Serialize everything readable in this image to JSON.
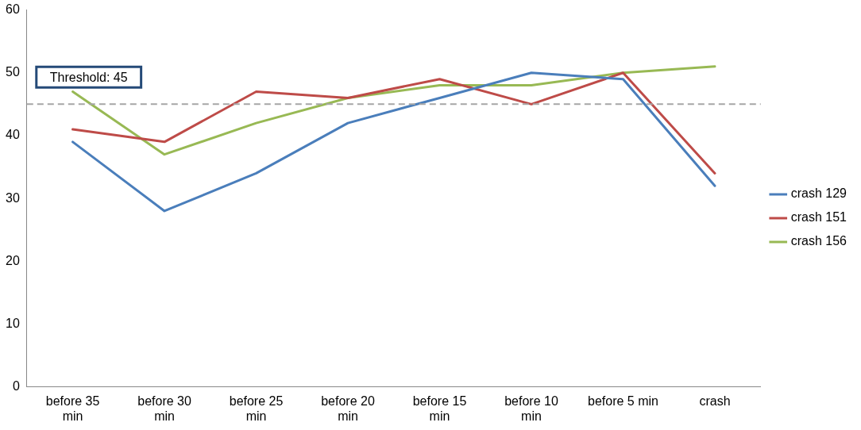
{
  "chart_data": {
    "type": "line",
    "categories": [
      "before 35 min",
      "before 30 min",
      "before 25 min",
      "before 20 min",
      "before 15 min",
      "before 10 min",
      "before 5 min",
      "crash"
    ],
    "series": [
      {
        "name": "crash 129",
        "color": "#4a7ebb",
        "values": [
          39,
          28,
          34,
          42,
          46,
          50,
          49,
          32
        ]
      },
      {
        "name": "crash 151",
        "color": "#be4b48",
        "values": [
          41,
          39,
          47,
          46,
          49,
          45,
          50,
          34
        ]
      },
      {
        "name": "crash 156",
        "color": "#98b954",
        "values": [
          47,
          37,
          42,
          46,
          48,
          48,
          50,
          51
        ]
      }
    ],
    "ylim": [
      0,
      60
    ],
    "yticks": [
      0,
      10,
      20,
      30,
      40,
      50,
      60
    ],
    "ref_lines": [
      {
        "axis": "y",
        "value": 45,
        "label": "Threshold: 45",
        "color": "#a6a6a6",
        "line_style": "dashed"
      }
    ],
    "grid": false,
    "legend": "right",
    "marker": "none",
    "line_style": "solid"
  }
}
